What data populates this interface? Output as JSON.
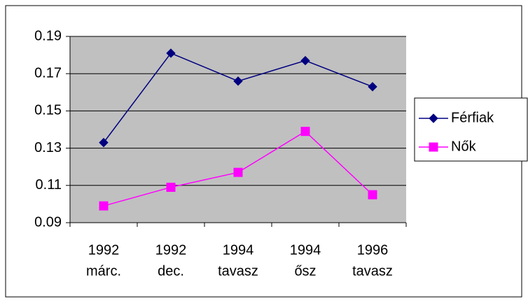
{
  "chart_data": {
    "type": "line",
    "categories": [
      [
        "1992",
        "márc."
      ],
      [
        "1992",
        "dec."
      ],
      [
        "1994",
        "tavasz"
      ],
      [
        "1994",
        "ősz"
      ],
      [
        "1996",
        "tavasz"
      ]
    ],
    "series": [
      {
        "name": "Férfiak",
        "color": "#000080",
        "marker": "diamond",
        "values": [
          0.133,
          0.181,
          0.166,
          0.177,
          0.163
        ]
      },
      {
        "name": "Nők",
        "color": "#ff00ff",
        "marker": "square",
        "values": [
          0.099,
          0.109,
          0.117,
          0.139,
          0.105
        ]
      }
    ],
    "ylim": [
      0.09,
      0.19
    ],
    "yticks": [
      0.09,
      0.11,
      0.13,
      0.15,
      0.17,
      0.19
    ],
    "grid": true,
    "legend": "right",
    "plot_background": "#c0c0c0"
  }
}
